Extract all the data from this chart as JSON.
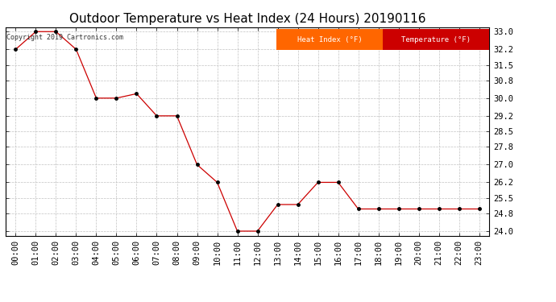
{
  "title": "Outdoor Temperature vs Heat Index (24 Hours) 20190116",
  "copyright_text": "Copyright 2019 Cartronics.com",
  "x_labels": [
    "00:00",
    "01:00",
    "02:00",
    "03:00",
    "04:00",
    "05:00",
    "06:00",
    "07:00",
    "08:00",
    "09:00",
    "10:00",
    "11:00",
    "12:00",
    "13:00",
    "14:00",
    "15:00",
    "16:00",
    "17:00",
    "18:00",
    "19:00",
    "20:00",
    "21:00",
    "22:00",
    "23:00"
  ],
  "temperature": [
    32.2,
    33.0,
    33.0,
    32.2,
    30.0,
    30.0,
    30.2,
    29.2,
    29.2,
    27.0,
    26.2,
    24.0,
    24.0,
    25.2,
    25.2,
    26.2,
    26.2,
    25.0,
    25.0,
    25.0,
    25.0,
    25.0,
    25.0,
    25.0
  ],
  "heat_index": [
    32.2,
    33.0,
    33.0,
    32.2,
    30.0,
    30.0,
    30.2,
    29.2,
    29.2,
    27.0,
    26.2,
    24.0,
    24.0,
    25.2,
    25.2,
    26.2,
    26.2,
    25.0,
    25.0,
    25.0,
    25.0,
    25.0,
    25.0,
    25.0
  ],
  "line_color": "#CC0000",
  "marker_color": "#000000",
  "heat_index_legend_bg": "#FF6600",
  "temperature_legend_bg": "#CC0000",
  "legend_text_color": "#FFFFFF",
  "y_min": 23.8,
  "y_max": 33.2,
  "y_ticks": [
    24.0,
    24.8,
    25.5,
    26.2,
    27.0,
    27.8,
    28.5,
    29.2,
    30.0,
    30.8,
    31.5,
    32.2,
    33.0
  ],
  "background_color": "#FFFFFF",
  "grid_color": "#BBBBBB",
  "title_fontsize": 11,
  "tick_fontsize": 7.5
}
